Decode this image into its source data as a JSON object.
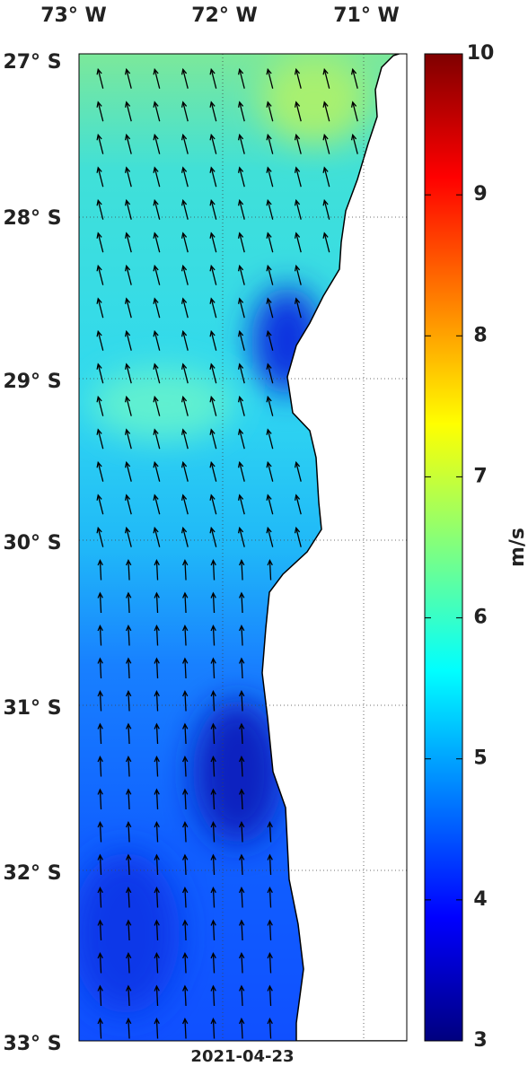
{
  "map": {
    "lon_labels": [
      "73° W",
      "72° W",
      "71° W"
    ],
    "lat_labels": [
      "27° S",
      "28° S",
      "29° S",
      "30° S",
      "31° S",
      "32° S",
      "33° S"
    ],
    "date": "2021-04-23",
    "colorbar": {
      "label": "m/s",
      "range": [
        3,
        10
      ],
      "ticks": [
        3,
        4,
        5,
        6,
        7,
        8,
        9,
        10
      ]
    }
  }
}
